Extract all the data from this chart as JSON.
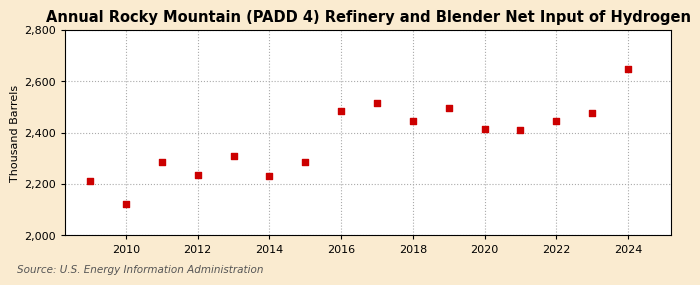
{
  "title": "Annual Rocky Mountain (PADD 4) Refinery and Blender Net Input of Hydrogen",
  "ylabel": "Thousand Barrels",
  "source": "Source: U.S. Energy Information Administration",
  "background_color": "#faebd0",
  "plot_bg_color": "#ffffff",
  "marker_color": "#cc0000",
  "marker": "s",
  "marker_size": 4,
  "years": [
    2009,
    2010,
    2011,
    2012,
    2013,
    2014,
    2015,
    2016,
    2017,
    2018,
    2019,
    2020,
    2021,
    2022,
    2023,
    2024
  ],
  "values": [
    2210,
    2120,
    2285,
    2235,
    2310,
    2230,
    2285,
    2485,
    2515,
    2445,
    2495,
    2415,
    2410,
    2445,
    2475,
    2650
  ],
  "ylim": [
    2000,
    2800
  ],
  "yticks": [
    2000,
    2200,
    2400,
    2600,
    2800
  ],
  "xlim": [
    2008.3,
    2025.2
  ],
  "xticks": [
    2010,
    2012,
    2014,
    2016,
    2018,
    2020,
    2022,
    2024
  ],
  "title_fontsize": 10.5,
  "label_fontsize": 8,
  "tick_fontsize": 8,
  "source_fontsize": 7.5
}
